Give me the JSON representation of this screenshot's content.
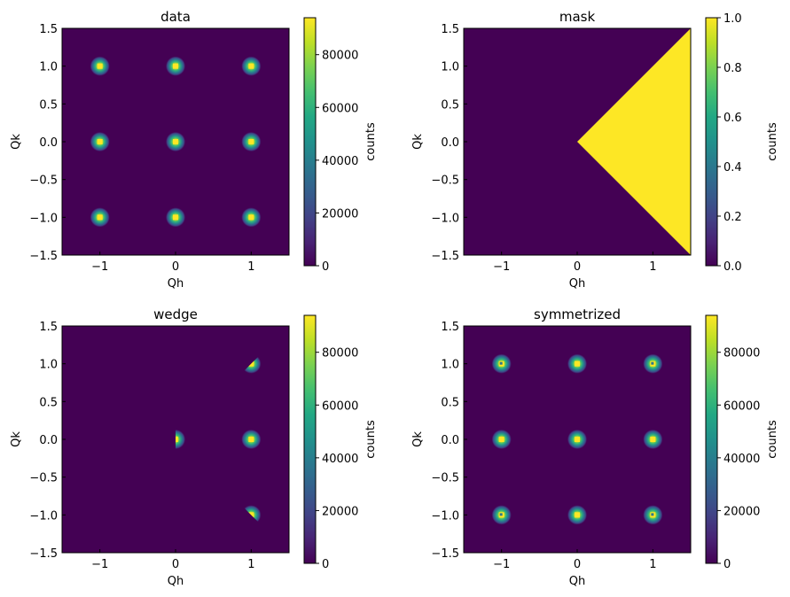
{
  "chart_data": [
    {
      "type": "heatmap",
      "title": "data",
      "xlabel": "Qh",
      "ylabel": "Qk",
      "xlim": [
        -1.5,
        1.5
      ],
      "ylim": [
        -1.5,
        1.5
      ],
      "xticks": [
        -1,
        0,
        1
      ],
      "yticks": [
        -1.5,
        -1.0,
        -0.5,
        0.0,
        0.5,
        1.0,
        1.5
      ],
      "colorbar": {
        "label": "counts",
        "range": [
          0,
          94000
        ],
        "ticks": [
          0,
          20000,
          40000,
          60000,
          80000
        ]
      },
      "peaks": [
        {
          "x": -1,
          "y": 1
        },
        {
          "x": 0,
          "y": 1
        },
        {
          "x": 1,
          "y": 1
        },
        {
          "x": -1,
          "y": 0
        },
        {
          "x": 0,
          "y": 0
        },
        {
          "x": 1,
          "y": 0
        },
        {
          "x": -1,
          "y": -1
        },
        {
          "x": 0,
          "y": -1
        },
        {
          "x": 1,
          "y": -1
        }
      ]
    },
    {
      "type": "heatmap",
      "title": "mask",
      "xlabel": "Qh",
      "ylabel": "Qk",
      "xlim": [
        -1.5,
        1.5
      ],
      "ylim": [
        -1.5,
        1.5
      ],
      "xticks": [
        -1,
        0,
        1
      ],
      "yticks": [
        -1.5,
        -1.0,
        -0.5,
        0.0,
        0.5,
        1.0,
        1.5
      ],
      "colorbar": {
        "label": "counts",
        "range": [
          0,
          1
        ],
        "ticks": [
          0.0,
          0.2,
          0.4,
          0.6,
          0.8,
          1.0
        ]
      },
      "wedge_region": {
        "x_min": 0,
        "boundary": "|Qk| <= Qh",
        "value": 1
      }
    },
    {
      "type": "heatmap",
      "title": "wedge",
      "xlabel": "Qh",
      "ylabel": "Qk",
      "xlim": [
        -1.5,
        1.5
      ],
      "ylim": [
        -1.5,
        1.5
      ],
      "xticks": [
        -1,
        0,
        1
      ],
      "yticks": [
        -1.5,
        -1.0,
        -0.5,
        0.0,
        0.5,
        1.0,
        1.5
      ],
      "colorbar": {
        "label": "counts",
        "range": [
          0,
          94000
        ],
        "ticks": [
          0,
          20000,
          40000,
          60000,
          80000
        ]
      },
      "peaks": [
        {
          "x": 0,
          "y": 0,
          "part": "right-half"
        },
        {
          "x": 1,
          "y": 1,
          "part": "lower-triangle"
        },
        {
          "x": 1,
          "y": 0,
          "part": "full"
        },
        {
          "x": 1,
          "y": -1,
          "part": "upper-triangle"
        }
      ]
    },
    {
      "type": "heatmap",
      "title": "symmetrized",
      "xlabel": "Qh",
      "ylabel": "Qk",
      "xlim": [
        -1.5,
        1.5
      ],
      "ylim": [
        -1.5,
        1.5
      ],
      "xticks": [
        -1,
        0,
        1
      ],
      "yticks": [
        -1.5,
        -1.0,
        -0.5,
        0.0,
        0.5,
        1.0,
        1.5
      ],
      "colorbar": {
        "label": "counts",
        "range": [
          0,
          94000
        ],
        "ticks": [
          0,
          20000,
          40000,
          60000,
          80000
        ]
      },
      "peaks": [
        {
          "x": -1,
          "y": 1
        },
        {
          "x": 0,
          "y": 1
        },
        {
          "x": 1,
          "y": 1
        },
        {
          "x": -1,
          "y": 0
        },
        {
          "x": 0,
          "y": 0
        },
        {
          "x": 1,
          "y": 0
        },
        {
          "x": -1,
          "y": -1
        },
        {
          "x": 0,
          "y": -1
        },
        {
          "x": 1,
          "y": -1
        }
      ]
    }
  ]
}
